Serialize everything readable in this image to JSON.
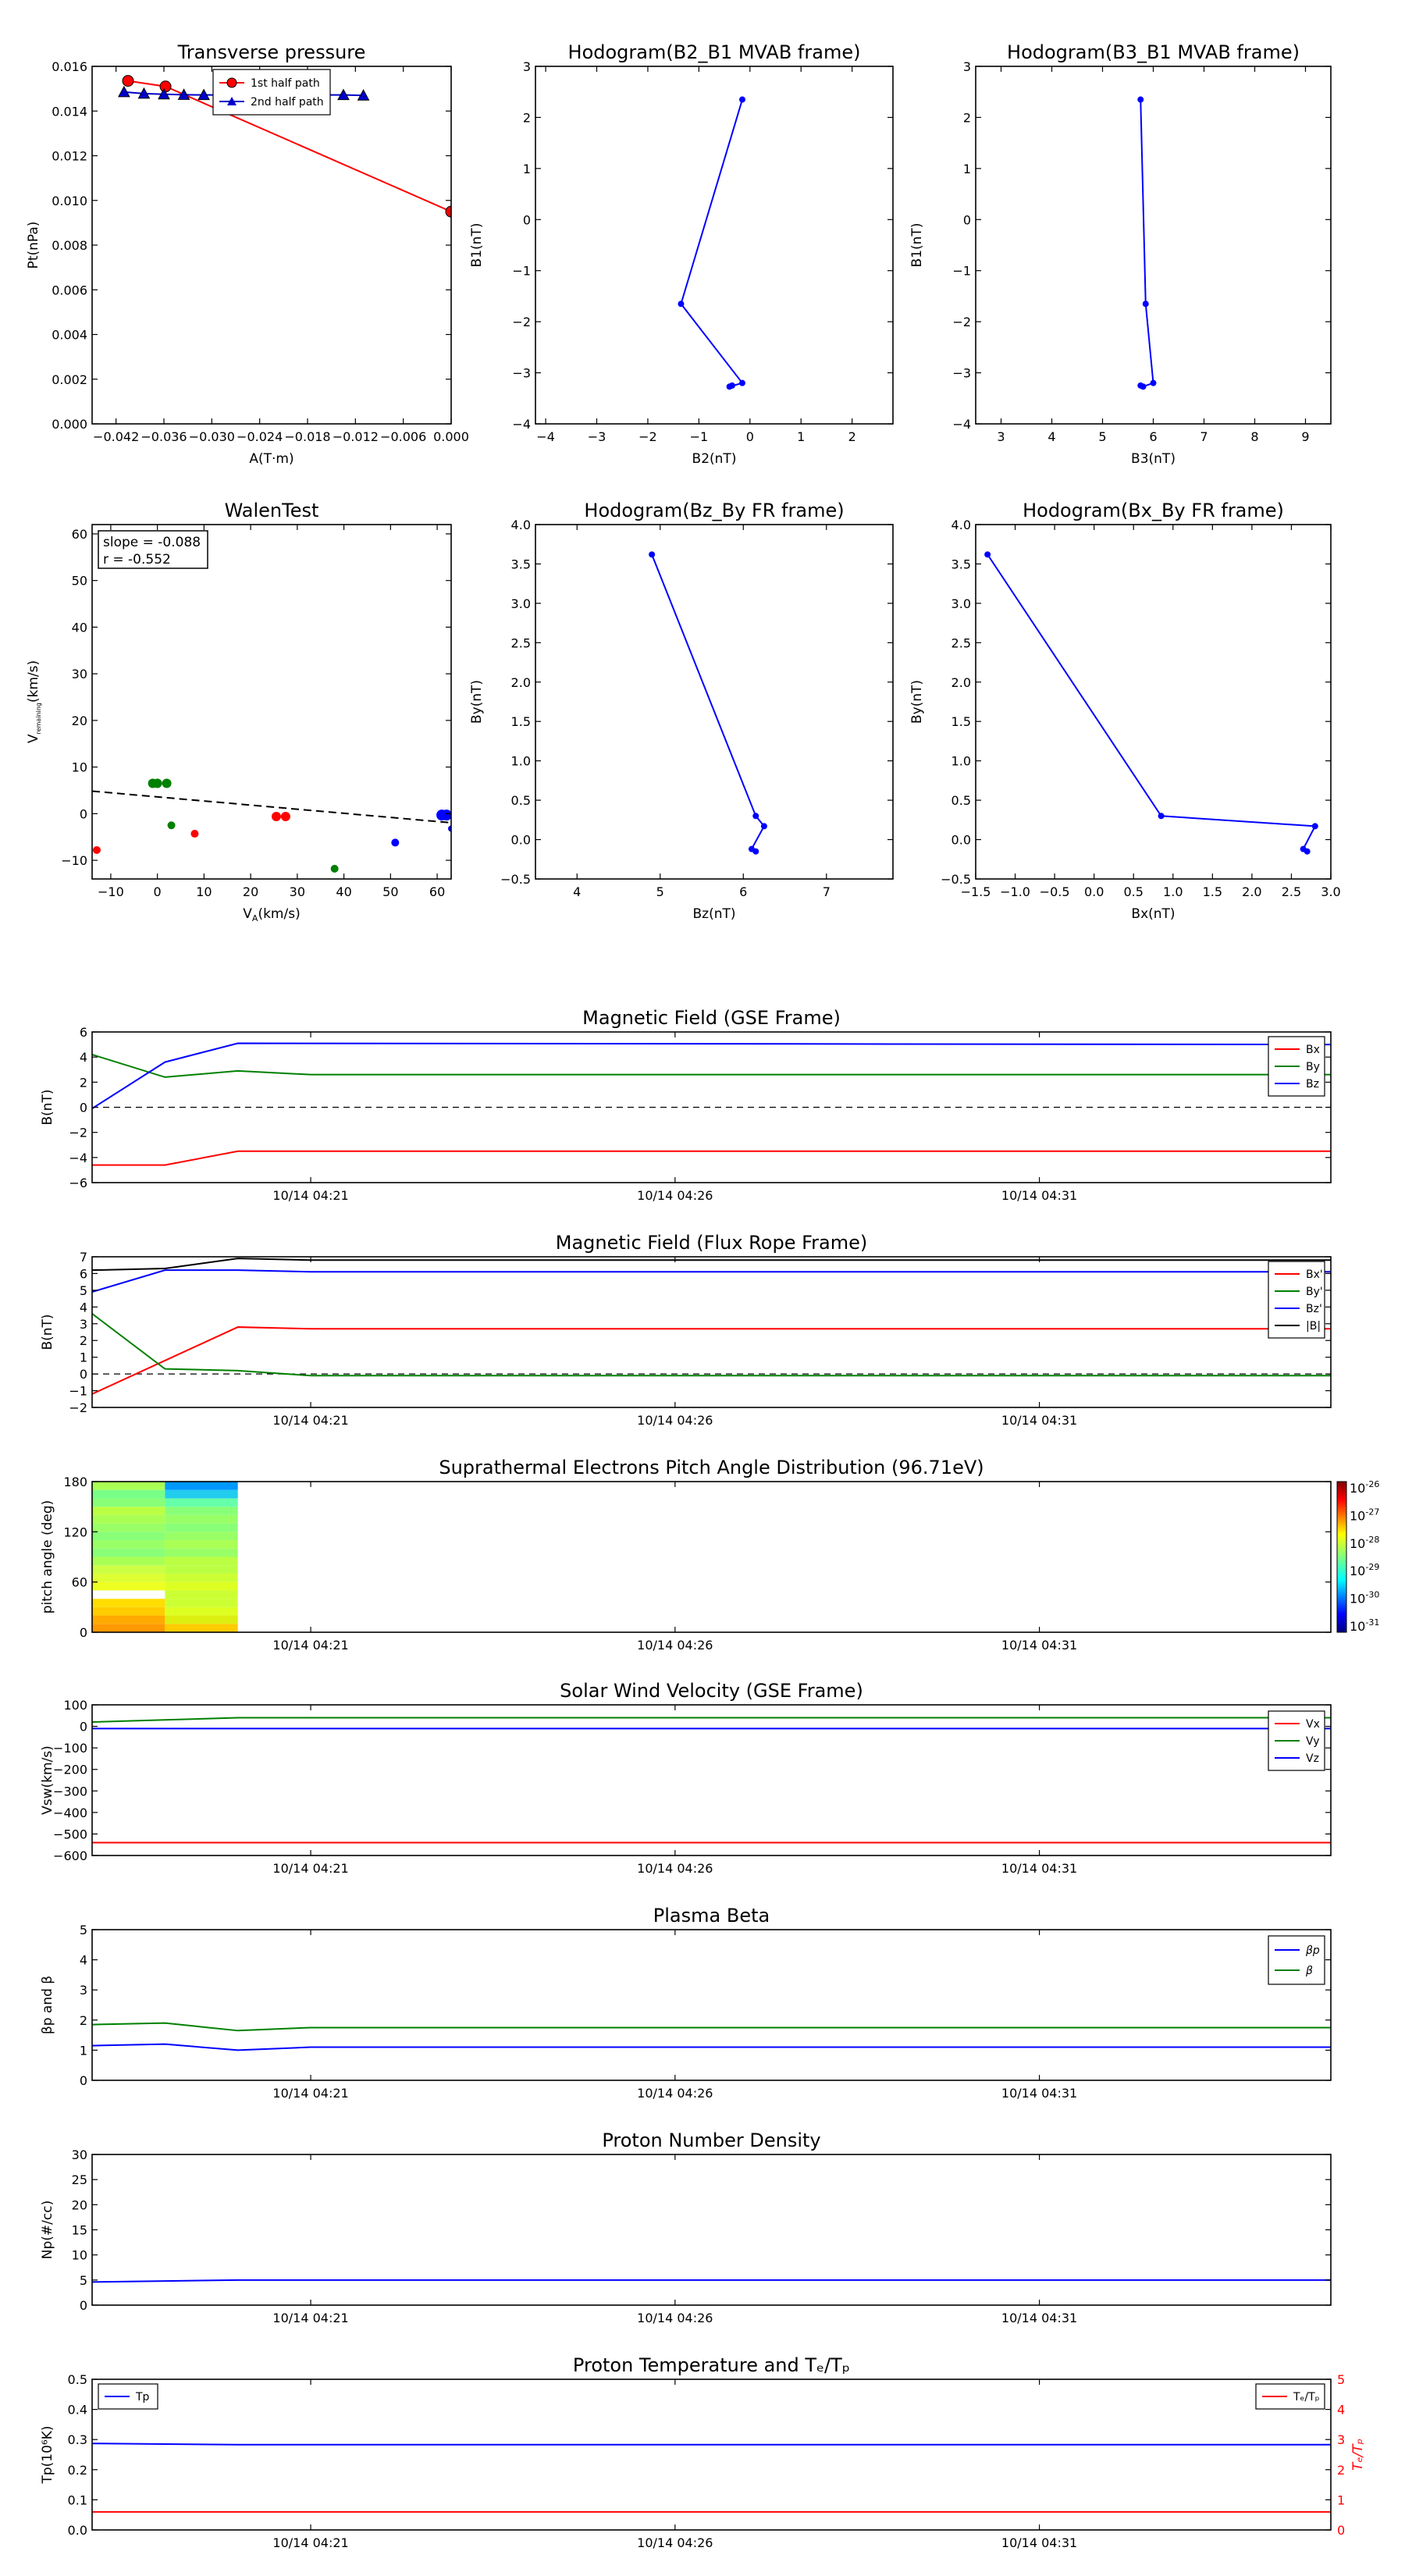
{
  "chart_data": [
    {
      "id": "tp",
      "type": "scatter",
      "title": "Transverse pressure",
      "xlabel": "A(T·m)",
      "ylabel": "Pt(nPa)",
      "xlim": [
        -0.045,
        0.0
      ],
      "ylim": [
        0.0,
        0.016
      ],
      "xticks": [
        -0.042,
        -0.036,
        -0.03,
        -0.024,
        -0.018,
        -0.012,
        -0.006,
        0.0
      ],
      "xticklabels": [
        "−0.042",
        "−0.036",
        "−0.030",
        "−0.024",
        "−0.018",
        "−0.012",
        "−0.006",
        "0.000"
      ],
      "yticks": [
        0.0,
        0.002,
        0.004,
        0.006,
        0.008,
        0.01,
        0.012,
        0.014,
        0.016
      ],
      "yticklabels": [
        "0.000",
        "0.002",
        "0.004",
        "0.006",
        "0.008",
        "0.010",
        "0.012",
        "0.014",
        "0.016"
      ],
      "legend": "top-center",
      "series": [
        {
          "name": "1st half path",
          "color": "#ff0000",
          "marker": "circle",
          "x": [
            -0.0405,
            -0.0358,
            0.0
          ],
          "y": [
            0.01535,
            0.0151,
            0.0095
          ]
        },
        {
          "name": "2nd half path",
          "color": "#0000cc",
          "marker": "triangle",
          "x": [
            -0.041,
            -0.0385,
            -0.036,
            -0.0335,
            -0.031,
            -0.0285,
            -0.026,
            -0.0235,
            -0.021,
            -0.0185,
            -0.016,
            -0.0135,
            -0.011
          ],
          "y": [
            0.01485,
            0.01478,
            0.01475,
            0.01473,
            0.01472,
            0.01472,
            0.01472,
            0.01472,
            0.01472,
            0.01472,
            0.01472,
            0.01472,
            0.0147
          ]
        }
      ]
    },
    {
      "id": "h1",
      "type": "line",
      "title": "Hodogram(B2_B1 MVAB frame)",
      "xlabel": "B2(nT)",
      "ylabel": "B1(nT)",
      "xlim": [
        -4.2,
        2.8
      ],
      "ylim": [
        -4,
        3
      ],
      "xticks": [
        -4,
        -3,
        -2,
        -1,
        0,
        1,
        2
      ],
      "xticklabels": [
        "−4",
        "−3",
        "−2",
        "−1",
        "0",
        "1",
        "2"
      ],
      "yticks": [
        -4,
        -3,
        -2,
        -1,
        0,
        1,
        2,
        3
      ],
      "yticklabels": [
        "−4",
        "−3",
        "−2",
        "−1",
        "0",
        "1",
        "2",
        "3"
      ],
      "series": [
        {
          "color": "#0000ff",
          "x": [
            -0.15,
            -1.35,
            -0.15,
            -0.4,
            -0.35
          ],
          "y": [
            2.35,
            -1.65,
            -3.2,
            -3.27,
            -3.25
          ]
        }
      ]
    },
    {
      "id": "h2",
      "type": "line",
      "title": "Hodogram(B3_B1 MVAB frame)",
      "xlabel": "B3(nT)",
      "ylabel": "B1(nT)",
      "xlim": [
        2.5,
        9.5
      ],
      "ylim": [
        -4,
        3
      ],
      "xticks": [
        3,
        4,
        5,
        6,
        7,
        8,
        9
      ],
      "xticklabels": [
        "3",
        "4",
        "5",
        "6",
        "7",
        "8",
        "9"
      ],
      "yticks": [
        -4,
        -3,
        -2,
        -1,
        0,
        1,
        2,
        3
      ],
      "yticklabels": [
        "−4",
        "−3",
        "−2",
        "−1",
        "0",
        "1",
        "2",
        "3"
      ],
      "series": [
        {
          "color": "#0000ff",
          "x": [
            5.75,
            5.85,
            6.0,
            5.8,
            5.75
          ],
          "y": [
            2.35,
            -1.65,
            -3.2,
            -3.27,
            -3.25
          ]
        }
      ]
    },
    {
      "id": "walen",
      "type": "scatter",
      "title": "WalenTest",
      "xlabel": "V",
      "xlabel_sub": "A",
      "xlabel_rest": "(km/s)",
      "ylabel": "V",
      "ylabel_sub": "remaining",
      "ylabel_rest": "(km/s)",
      "xlim": [
        -14,
        63
      ],
      "ylim": [
        -14,
        62
      ],
      "xticks": [
        -10,
        0,
        10,
        20,
        30,
        40,
        50,
        60
      ],
      "xticklabels": [
        "−10",
        "0",
        "10",
        "20",
        "30",
        "40",
        "50",
        "60"
      ],
      "yticks": [
        -10,
        0,
        10,
        20,
        30,
        40,
        50,
        60
      ],
      "yticklabels": [
        "−10",
        "0",
        "10",
        "20",
        "30",
        "40",
        "50",
        "60"
      ],
      "annotation_lines": [
        "slope = -0.088",
        "r = -0.552"
      ],
      "fit": {
        "slope": -0.088,
        "intercept": 3.6
      },
      "points": [
        {
          "x": -13,
          "y": -7.8,
          "c": "#ff0000",
          "s": 5
        },
        {
          "x": -1,
          "y": 6.5,
          "c": "#008000",
          "s": 6
        },
        {
          "x": 0,
          "y": 6.5,
          "c": "#008000",
          "s": 6
        },
        {
          "x": 2,
          "y": 6.5,
          "c": "#008000",
          "s": 6
        },
        {
          "x": 3,
          "y": -2.5,
          "c": "#008000",
          "s": 5
        },
        {
          "x": 8,
          "y": -4.3,
          "c": "#ff0000",
          "s": 5
        },
        {
          "x": 25.5,
          "y": -0.6,
          "c": "#ff0000",
          "s": 6
        },
        {
          "x": 27.5,
          "y": -0.6,
          "c": "#ff0000",
          "s": 6
        },
        {
          "x": 38,
          "y": -11.8,
          "c": "#008000",
          "s": 5
        },
        {
          "x": 51,
          "y": -6.2,
          "c": "#0000ff",
          "s": 5
        },
        {
          "x": 61,
          "y": -0.3,
          "c": "#0000ff",
          "s": 7
        },
        {
          "x": 62,
          "y": -0.3,
          "c": "#0000ff",
          "s": 7
        },
        {
          "x": 63,
          "y": -3.2,
          "c": "#0000ff",
          "s": 4
        }
      ]
    },
    {
      "id": "h3",
      "type": "line",
      "title": "Hodogram(Bz_By FR frame)",
      "xlabel": "Bz(nT)",
      "ylabel": "By(nT)",
      "xlim": [
        3.5,
        7.8
      ],
      "ylim": [
        -0.5,
        4.0
      ],
      "xticks": [
        4,
        5,
        6,
        7
      ],
      "xticklabels": [
        "4",
        "5",
        "6",
        "7"
      ],
      "yticks": [
        -0.5,
        0.0,
        0.5,
        1.0,
        1.5,
        2.0,
        2.5,
        3.0,
        3.5,
        4.0
      ],
      "yticklabels": [
        "−0.5",
        "0.0",
        "0.5",
        "1.0",
        "1.5",
        "2.0",
        "2.5",
        "3.0",
        "3.5",
        "4.0"
      ],
      "series": [
        {
          "color": "#0000ff",
          "x": [
            4.9,
            6.15,
            6.25,
            6.1,
            6.15
          ],
          "y": [
            3.62,
            0.3,
            0.17,
            -0.12,
            -0.15
          ]
        }
      ]
    },
    {
      "id": "h4",
      "type": "line",
      "title": "Hodogram(Bx_By FR frame)",
      "xlabel": "Bx(nT)",
      "ylabel": "By(nT)",
      "xlim": [
        -1.5,
        3.0
      ],
      "ylim": [
        -0.5,
        4.0
      ],
      "xticks": [
        -1.5,
        -1.0,
        -0.5,
        0.0,
        0.5,
        1.0,
        1.5,
        2.0,
        2.5,
        3.0
      ],
      "xticklabels": [
        "−1.5",
        "−1.0",
        "−0.5",
        "0.0",
        "0.5",
        "1.0",
        "1.5",
        "2.0",
        "2.5",
        "3.0"
      ],
      "yticks": [
        -0.5,
        0.0,
        0.5,
        1.0,
        1.5,
        2.0,
        2.5,
        3.0,
        3.5,
        4.0
      ],
      "yticklabels": [
        "−0.5",
        "0.0",
        "0.5",
        "1.0",
        "1.5",
        "2.0",
        "2.5",
        "3.0",
        "3.5",
        "4.0"
      ],
      "series": [
        {
          "color": "#0000ff",
          "x": [
            -1.35,
            0.85,
            2.8,
            2.65,
            2.7
          ],
          "y": [
            3.62,
            0.3,
            0.17,
            -0.12,
            -0.15
          ]
        }
      ]
    },
    {
      "id": "mag_gse",
      "type": "line",
      "title": "Magnetic Field (GSE Frame)",
      "ylabel": "B(nT)",
      "xlim": [
        0,
        17
      ],
      "ylim": [
        -6,
        6
      ],
      "yticks": [
        -6,
        -4,
        -2,
        0,
        2,
        4,
        6
      ],
      "yticklabels": [
        "−6",
        "−4",
        "−2",
        "0",
        "2",
        "4",
        "6"
      ],
      "xticks": [
        3,
        8,
        13
      ],
      "xticklabels": [
        "10/14 04:21",
        "10/14 04:26",
        "10/14 04:31"
      ],
      "zero_line": true,
      "legend": "top-right",
      "series": [
        {
          "name": "Bx",
          "color": "#ff0000",
          "x": [
            0,
            1,
            2,
            17
          ],
          "y": [
            -4.6,
            -4.6,
            -3.5,
            -3.5
          ]
        },
        {
          "name": "By",
          "color": "#008000",
          "x": [
            0,
            1,
            2,
            3,
            17
          ],
          "y": [
            4.2,
            2.4,
            2.9,
            2.6,
            2.6
          ]
        },
        {
          "name": "Bz",
          "color": "#0000ff",
          "x": [
            0,
            1,
            2,
            17
          ],
          "y": [
            -0.1,
            3.6,
            5.1,
            5.0
          ]
        }
      ]
    },
    {
      "id": "mag_fr",
      "type": "line",
      "title": "Magnetic Field (Flux Rope Frame)",
      "ylabel": "B(nT)",
      "xlim": [
        0,
        17
      ],
      "ylim": [
        -2,
        7
      ],
      "yticks": [
        -2,
        -1,
        0,
        1,
        2,
        3,
        4,
        5,
        6,
        7
      ],
      "yticklabels": [
        "−2",
        "−1",
        "0",
        "1",
        "2",
        "3",
        "4",
        "5",
        "6",
        "7"
      ],
      "xticks": [
        3,
        8,
        13
      ],
      "xticklabels": [
        "10/14 04:21",
        "10/14 04:26",
        "10/14 04:31"
      ],
      "zero_line": true,
      "legend": "right",
      "series": [
        {
          "name": "Bx'",
          "color": "#ff0000",
          "x": [
            0,
            1,
            2,
            3,
            17
          ],
          "y": [
            -1.2,
            0.8,
            2.8,
            2.7,
            2.7
          ]
        },
        {
          "name": "By'",
          "color": "#008000",
          "x": [
            0,
            1,
            2,
            3,
            17
          ],
          "y": [
            3.6,
            0.3,
            0.2,
            -0.1,
            -0.1
          ]
        },
        {
          "name": "Bz'",
          "color": "#0000ff",
          "x": [
            0,
            1,
            2,
            3,
            17
          ],
          "y": [
            4.9,
            6.2,
            6.2,
            6.1,
            6.1
          ]
        },
        {
          "name": "|B|",
          "color": "#000000",
          "x": [
            0,
            1,
            2,
            3,
            17
          ],
          "y": [
            6.2,
            6.3,
            6.9,
            6.8,
            6.8
          ]
        }
      ]
    },
    {
      "id": "pad",
      "type": "heatmap",
      "title": "Suprathermal Electrons Pitch Angle Distribution (96.71eV)",
      "ylabel": "pitch angle (deg)",
      "xlim": [
        0,
        17
      ],
      "ylim": [
        0,
        180
      ],
      "yticks": [
        0,
        60,
        120,
        180
      ],
      "yticklabels": [
        "0",
        "60",
        "120",
        "180"
      ],
      "xticks": [
        3,
        8,
        13
      ],
      "xticklabels": [
        "10/14 04:21",
        "10/14 04:26",
        "10/14 04:31"
      ],
      "colorbar_exponents": [
        "-26",
        "-27",
        "-28",
        "-29",
        "-30",
        "-31"
      ],
      "columns": [
        {
          "x0": 0,
          "x1": 1,
          "cells": [
            "#ff9900",
            "#ffaa00",
            "#ffcc00",
            "#ffdd00",
            "#ffffff",
            "#eeff22",
            "#ddff33",
            "#ccff44",
            "#aaff55",
            "#88ff77",
            "#99ff66",
            "#88ff77",
            "#99ff66",
            "#aaff55",
            "#bbff44",
            "#88ff77",
            "#77ff88",
            "#aaff55"
          ]
        },
        {
          "x0": 1,
          "x1": 2,
          "cells": [
            "#ffcc00",
            "#ddee11",
            "#ddff22",
            "#ccff33",
            "#ccff33",
            "#ddff22",
            "#ccff33",
            "#bbff44",
            "#bbff44",
            "#99ff66",
            "#aaff55",
            "#99ff66",
            "#88ff77",
            "#99ff66",
            "#88ff77",
            "#66ffaa",
            "#22ccee",
            "#0099ff"
          ]
        }
      ]
    },
    {
      "id": "vsw",
      "type": "line",
      "title": "Solar Wind Velocity (GSE Frame)",
      "ylabel": "Vsw(km/s)",
      "xlim": [
        0,
        17
      ],
      "ylim": [
        -600,
        100
      ],
      "yticks": [
        -600,
        -500,
        -400,
        -300,
        -200,
        -100,
        0,
        100
      ],
      "yticklabels": [
        "−600",
        "−500",
        "−400",
        "−300",
        "−200",
        "−100",
        "0",
        "100"
      ],
      "xticks": [
        3,
        8,
        13
      ],
      "xticklabels": [
        "10/14 04:21",
        "10/14 04:26",
        "10/14 04:31"
      ],
      "legend": "right",
      "series": [
        {
          "name": "Vx",
          "color": "#ff0000",
          "x": [
            0,
            17
          ],
          "y": [
            -540,
            -540
          ]
        },
        {
          "name": "Vy",
          "color": "#008000",
          "x": [
            0,
            1,
            2,
            17
          ],
          "y": [
            20,
            30,
            40,
            40
          ]
        },
        {
          "name": "Vz",
          "color": "#0000ff",
          "x": [
            0,
            17
          ],
          "y": [
            -10,
            -10
          ]
        }
      ]
    },
    {
      "id": "beta",
      "type": "line",
      "title": "Plasma Beta",
      "ylabel": "βp and β",
      "xlim": [
        0,
        17
      ],
      "ylim": [
        0,
        5
      ],
      "yticks": [
        0,
        1,
        2,
        3,
        4,
        5
      ],
      "yticklabels": [
        "0",
        "1",
        "2",
        "3",
        "4",
        "5"
      ],
      "xticks": [
        3,
        8,
        13
      ],
      "xticklabels": [
        "10/14 04:21",
        "10/14 04:26",
        "10/14 04:31"
      ],
      "legend": "top-right",
      "series": [
        {
          "name": "βp",
          "color": "#0000ff",
          "x": [
            0,
            1,
            2,
            3,
            17
          ],
          "y": [
            1.15,
            1.2,
            1.0,
            1.1,
            1.1
          ]
        },
        {
          "name": "β",
          "color": "#008000",
          "x": [
            0,
            1,
            2,
            3,
            17
          ],
          "y": [
            1.85,
            1.9,
            1.65,
            1.75,
            1.75
          ]
        }
      ]
    },
    {
      "id": "np",
      "type": "line",
      "title": "Proton Number Density",
      "ylabel": "Np(#/cc)",
      "xlim": [
        0,
        17
      ],
      "ylim": [
        0,
        30
      ],
      "yticks": [
        0,
        5,
        10,
        15,
        20,
        25,
        30
      ],
      "yticklabels": [
        "0",
        "5",
        "10",
        "15",
        "20",
        "25",
        "30"
      ],
      "xticks": [
        3,
        8,
        13
      ],
      "xticklabels": [
        "10/14 04:21",
        "10/14 04:26",
        "10/14 04:31"
      ],
      "series": [
        {
          "color": "#0000ff",
          "x": [
            0,
            1,
            2,
            17
          ],
          "y": [
            4.6,
            4.8,
            5.0,
            5.0
          ]
        }
      ]
    },
    {
      "id": "tp_ratio",
      "type": "line",
      "title": "Proton Temperature and Tₑ/Tₚ",
      "ylabel": "Tp(10⁶K)",
      "ylabel_right": "Tₑ/Tₚ",
      "xlim": [
        0,
        17
      ],
      "ylim": [
        0,
        0.5
      ],
      "ylim_right": [
        0,
        5
      ],
      "yticks": [
        0,
        0.1,
        0.2,
        0.3,
        0.4,
        0.5
      ],
      "yticklabels": [
        "0.0",
        "0.1",
        "0.2",
        "0.3",
        "0.4",
        "0.5"
      ],
      "yticks_right": [
        0,
        1,
        2,
        3,
        4,
        5
      ],
      "yticklabels_right": [
        "0",
        "1",
        "2",
        "3",
        "4",
        "5"
      ],
      "xticks": [
        3,
        8,
        13
      ],
      "xticklabels": [
        "10/14 04:21",
        "10/14 04:26",
        "10/14 04:31"
      ],
      "series": [
        {
          "name": "Tp",
          "color": "#0000ff",
          "axis": "left",
          "x": [
            0,
            1,
            2,
            17
          ],
          "y": [
            0.287,
            0.285,
            0.283,
            0.283
          ]
        },
        {
          "name": "Tₑ/Tₚ",
          "color": "#ff0000",
          "axis": "right",
          "x": [
            0,
            17
          ],
          "y": [
            0.6,
            0.6
          ]
        }
      ]
    }
  ]
}
